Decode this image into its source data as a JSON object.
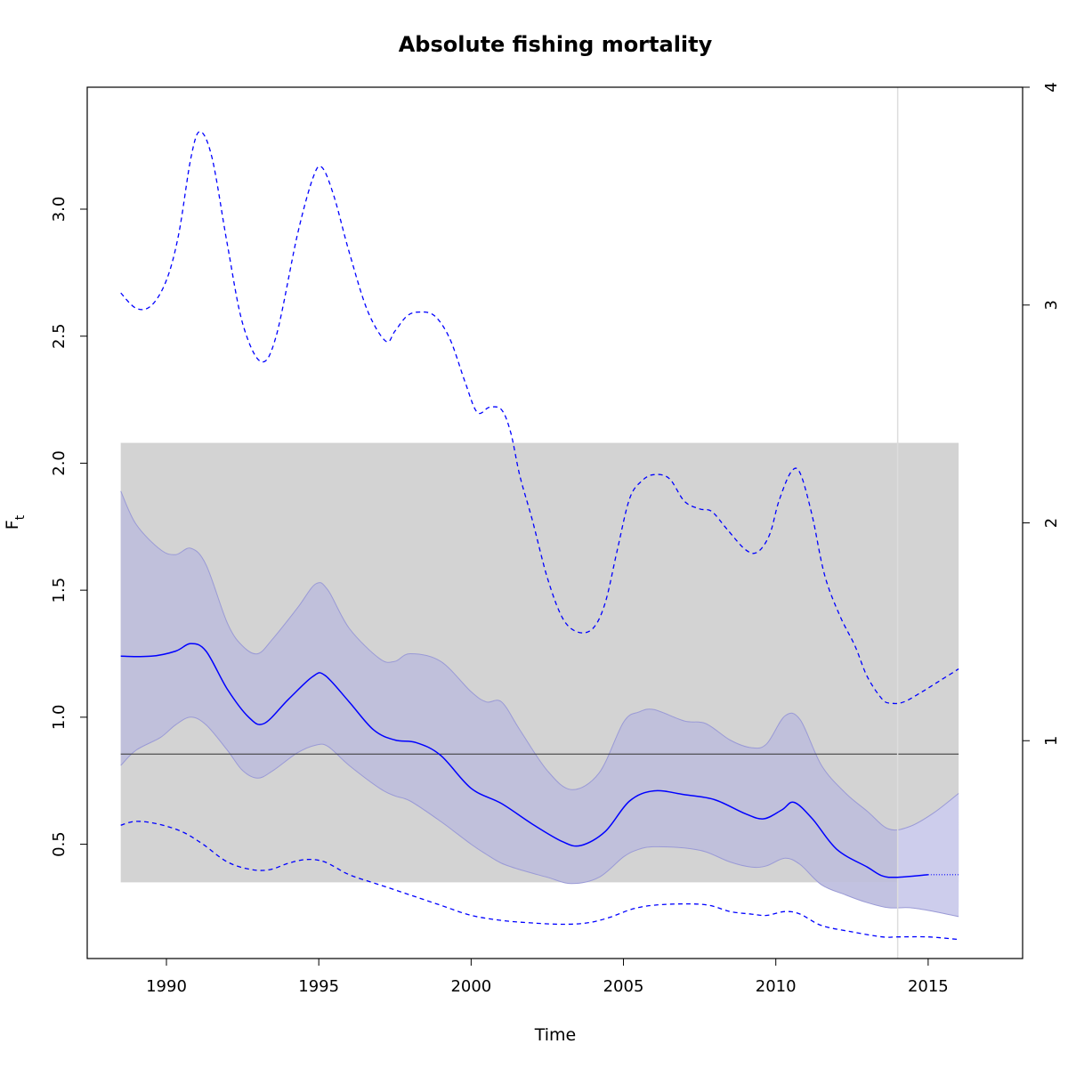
{
  "chart_data": {
    "type": "line",
    "title": "Absolute fishing mortality",
    "xlabel": "Time",
    "ylabel": "F",
    "ylabel_sub": "t",
    "xlim": [
      1987.4,
      2018.1
    ],
    "ylim": [
      0.05,
      3.48
    ],
    "right_ylim": [
      0.0,
      4.0
    ],
    "x_ticks": [
      1990,
      1995,
      2000,
      2005,
      2010,
      2015
    ],
    "x_tick_labels": [
      "1990",
      "1995",
      "2000",
      "2005",
      "2010",
      "2015"
    ],
    "y_ticks": [
      0.5,
      1.0,
      1.5,
      2.0,
      2.5,
      3.0
    ],
    "y_tick_labels": [
      "0.5",
      "1.0",
      "1.5",
      "2.0",
      "2.5",
      "3.0"
    ],
    "right_y_ticks": [
      1,
      2,
      3,
      4
    ],
    "right_y_tick_labels": [
      "1",
      "2",
      "3",
      "4"
    ],
    "grid": false,
    "reference_box": {
      "x": [
        1988.5,
        2016.0
      ],
      "y": [
        0.35,
        2.08
      ]
    },
    "reference_line_y": 0.855,
    "vline_x": 2014.0,
    "colors": {
      "main": "#0000ff",
      "band": "#bcbcdc",
      "band_edge": "#9a9ad6",
      "forecast_band": "#e2e2ff",
      "reference_box": "#d3d3d3",
      "vline": "#dddddd"
    },
    "series": [
      {
        "role": "estimate",
        "style": "solid",
        "x": [
          1988.5,
          1989.5,
          1990.3,
          1990.8,
          1991.3,
          1992.0,
          1992.7,
          1993.2,
          1994.0,
          1994.8,
          1995.2,
          1996.0,
          1996.8,
          1997.5,
          1998.2,
          1999.0,
          2000.0,
          2001.0,
          2002.0,
          2003.0,
          2003.6,
          2004.4,
          2005.2,
          2006.0,
          2007.0,
          2008.0,
          2009.0,
          2009.6,
          2010.2,
          2010.6,
          2011.2,
          2012.0,
          2013.0,
          2013.5,
          2014.0,
          2015.0
        ],
        "y": [
          1.24,
          1.24,
          1.26,
          1.29,
          1.26,
          1.11,
          1.0,
          0.975,
          1.07,
          1.16,
          1.165,
          1.06,
          0.95,
          0.91,
          0.9,
          0.85,
          0.72,
          0.66,
          0.58,
          0.51,
          0.495,
          0.55,
          0.67,
          0.71,
          0.695,
          0.675,
          0.62,
          0.6,
          0.635,
          0.665,
          0.6,
          0.48,
          0.41,
          0.375,
          0.37,
          0.38
        ]
      },
      {
        "role": "forecast",
        "style": "dotted",
        "x": [
          2015.0,
          2016.0
        ],
        "y": [
          0.38,
          0.38
        ]
      },
      {
        "role": "ci-upper",
        "x": [
          1988.5,
          1989.0,
          1989.8,
          1990.3,
          1990.8,
          1991.3,
          1992.0,
          1992.5,
          1993.0,
          1993.5,
          1994.3,
          1994.9,
          1995.3,
          1996.0,
          1997.0,
          1997.5,
          1998.0,
          1999.0,
          2000.0,
          2000.5,
          2001.0,
          2001.6,
          2002.5,
          2003.3,
          2004.2,
          2005.0,
          2005.5,
          2006.0,
          2007.0,
          2007.7,
          2008.5,
          2009.2,
          2009.7,
          2010.3,
          2010.8,
          2011.5,
          2012.3,
          2013.0,
          2013.7,
          2014.4,
          2015.2,
          2016.0
        ],
        "y": [
          1.89,
          1.76,
          1.66,
          1.64,
          1.665,
          1.6,
          1.37,
          1.28,
          1.25,
          1.31,
          1.43,
          1.525,
          1.5,
          1.35,
          1.23,
          1.22,
          1.25,
          1.22,
          1.1,
          1.06,
          1.06,
          0.95,
          0.79,
          0.715,
          0.78,
          0.98,
          1.02,
          1.03,
          0.985,
          0.975,
          0.91,
          0.88,
          0.895,
          1.005,
          0.99,
          0.81,
          0.7,
          0.63,
          0.56,
          0.57,
          0.625,
          0.7
        ]
      },
      {
        "role": "ci-lower",
        "x": [
          1988.5,
          1989.0,
          1989.8,
          1990.3,
          1990.8,
          1991.3,
          1992.0,
          1992.5,
          1993.0,
          1993.5,
          1994.3,
          1994.9,
          1995.3,
          1996.0,
          1997.0,
          1997.5,
          1998.0,
          1999.0,
          2000.0,
          2000.5,
          2001.0,
          2001.6,
          2002.5,
          2003.3,
          2004.2,
          2005.0,
          2005.5,
          2006.0,
          2007.0,
          2007.7,
          2008.5,
          2009.2,
          2009.7,
          2010.3,
          2010.8,
          2011.5,
          2012.3,
          2013.0,
          2013.7,
          2014.4,
          2015.2,
          2016.0
        ],
        "y": [
          0.81,
          0.87,
          0.92,
          0.97,
          1.0,
          0.97,
          0.87,
          0.79,
          0.76,
          0.79,
          0.86,
          0.89,
          0.885,
          0.81,
          0.72,
          0.69,
          0.67,
          0.59,
          0.5,
          0.46,
          0.425,
          0.4,
          0.37,
          0.345,
          0.37,
          0.45,
          0.48,
          0.49,
          0.485,
          0.47,
          0.43,
          0.41,
          0.415,
          0.445,
          0.42,
          0.34,
          0.3,
          0.27,
          0.25,
          0.25,
          0.235,
          0.215
        ]
      },
      {
        "role": "upper-dashed",
        "style": "dashed",
        "x": [
          1988.5,
          1989.0,
          1989.5,
          1990.0,
          1990.4,
          1990.8,
          1991.1,
          1991.5,
          1992.0,
          1992.5,
          1993.1,
          1993.6,
          1994.3,
          1994.8,
          1995.1,
          1995.5,
          1996.0,
          1996.6,
          1997.2,
          1997.5,
          1997.9,
          1998.3,
          1998.8,
          1999.3,
          1999.8,
          2000.2,
          2000.6,
          2001.0,
          2001.3,
          2001.6,
          2002.0,
          2002.5,
          2003.0,
          2003.5,
          2004.0,
          2004.4,
          2004.8,
          2005.2,
          2005.6,
          2006.0,
          2006.5,
          2007.0,
          2007.5,
          2007.9,
          2008.4,
          2009.0,
          2009.4,
          2009.8,
          2010.1,
          2010.5,
          2010.8,
          2011.2,
          2011.6,
          2012.1,
          2012.6,
          2013.0,
          2013.5,
          2013.8,
          2014.2,
          2014.8,
          2015.4,
          2016.0
        ],
        "y": [
          2.67,
          2.61,
          2.62,
          2.72,
          2.9,
          3.2,
          3.305,
          3.2,
          2.86,
          2.55,
          2.4,
          2.5,
          2.9,
          3.12,
          3.165,
          3.05,
          2.83,
          2.6,
          2.48,
          2.52,
          2.58,
          2.595,
          2.58,
          2.49,
          2.32,
          2.2,
          2.22,
          2.21,
          2.12,
          1.95,
          1.78,
          1.55,
          1.39,
          1.335,
          1.35,
          1.45,
          1.66,
          1.86,
          1.93,
          1.955,
          1.94,
          1.85,
          1.82,
          1.81,
          1.74,
          1.66,
          1.65,
          1.72,
          1.85,
          1.965,
          1.96,
          1.79,
          1.56,
          1.4,
          1.28,
          1.16,
          1.07,
          1.055,
          1.06,
          1.1,
          1.145,
          1.19
        ]
      },
      {
        "role": "lower-dashed",
        "style": "dashed",
        "x": [
          1988.5,
          1989.0,
          1989.7,
          1990.5,
          1991.2,
          1992.0,
          1992.8,
          1993.4,
          1994.0,
          1994.6,
          1995.2,
          1996.0,
          1997.0,
          1998.0,
          1999.0,
          2000.0,
          2001.0,
          2002.0,
          2003.0,
          2003.8,
          2004.5,
          2005.3,
          2006.0,
          2007.0,
          2007.8,
          2008.5,
          2009.2,
          2009.7,
          2010.3,
          2010.8,
          2011.5,
          2012.5,
          2013.5,
          2014.0,
          2015.0,
          2016.0
        ],
        "y": [
          0.575,
          0.59,
          0.58,
          0.55,
          0.5,
          0.43,
          0.4,
          0.4,
          0.425,
          0.44,
          0.43,
          0.38,
          0.34,
          0.3,
          0.26,
          0.22,
          0.2,
          0.19,
          0.185,
          0.19,
          0.21,
          0.245,
          0.26,
          0.265,
          0.26,
          0.235,
          0.225,
          0.22,
          0.235,
          0.225,
          0.18,
          0.155,
          0.135,
          0.135,
          0.135,
          0.125
        ]
      }
    ]
  }
}
